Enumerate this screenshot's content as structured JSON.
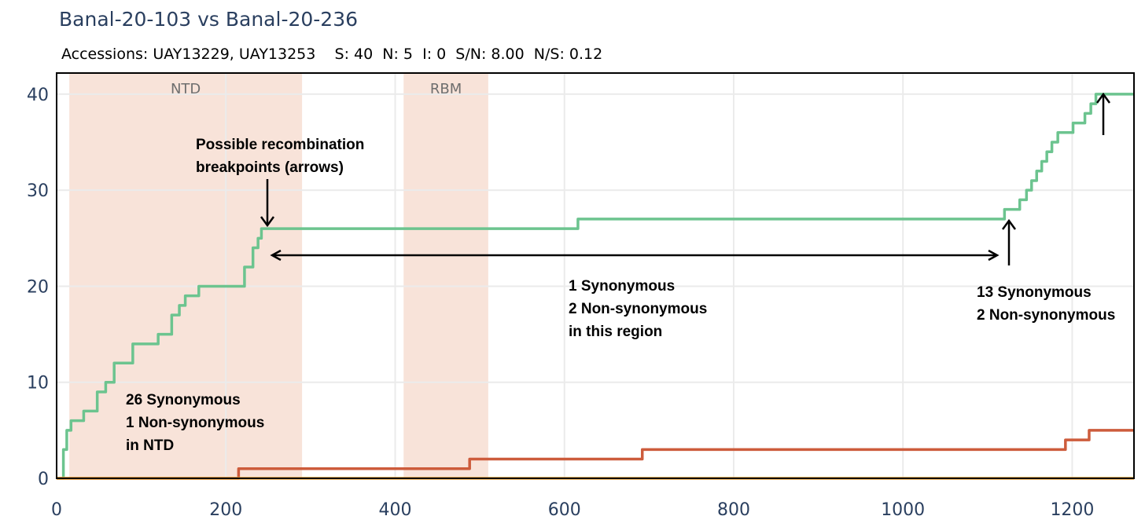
{
  "header": {
    "title": "Banal-20-103 vs Banal-20-236",
    "subtitle": "Accessions: UAY13229, UAY13253    S: 40  N: 5  I: 0  S/N: 8.00  N/S: 0.12"
  },
  "chart_data": {
    "type": "line",
    "line_shape": "step",
    "xlim": [
      0,
      1273
    ],
    "ylim": [
      0,
      42.2
    ],
    "x_ticks": [
      0,
      200,
      400,
      600,
      800,
      1000,
      1200
    ],
    "y_ticks": [
      0,
      10,
      20,
      30,
      40
    ],
    "grid": true,
    "regions": [
      {
        "label": "NTD",
        "x0": 15,
        "x1": 290,
        "color": "#f8e3d9"
      },
      {
        "label": "RBM",
        "x0": 410,
        "x1": 510,
        "color": "#f8e3d9"
      }
    ],
    "series": [
      {
        "color": "#6cc48f",
        "x": [
          0,
          8,
          12,
          17,
          32,
          48,
          58,
          68,
          78,
          90,
          102,
          120,
          136,
          145,
          152,
          158,
          168,
          180,
          200,
          210,
          222,
          232,
          238,
          242,
          246,
          255,
          300,
          400,
          500,
          616,
          700,
          800,
          900,
          1000,
          1120,
          1128,
          1138,
          1146,
          1152,
          1158,
          1164,
          1170,
          1176,
          1183,
          1192,
          1201,
          1208,
          1215,
          1222,
          1228,
          1238,
          1260,
          1273
        ],
        "y": [
          0,
          3,
          5,
          6,
          7,
          9,
          10,
          12,
          12,
          14,
          14,
          15,
          17,
          18,
          19,
          19,
          20,
          20,
          20,
          20,
          22,
          24,
          25,
          26,
          26,
          26,
          26,
          26,
          26,
          27,
          27,
          27,
          27,
          27,
          28,
          28,
          29,
          30,
          31,
          32,
          33,
          34,
          35,
          36,
          36,
          37,
          37,
          38,
          39,
          40,
          40,
          40,
          40
        ]
      },
      {
        "color": "#cd5c3c",
        "x": [
          0,
          215,
          300,
          400,
          488,
          600,
          692,
          800,
          900,
          1000,
          1100,
          1192,
          1220,
          1273
        ],
        "y": [
          0,
          1,
          1,
          1,
          2,
          2,
          3,
          3,
          3,
          3,
          3,
          4,
          5,
          5
        ]
      },
      {
        "color": "#f0a63c",
        "x": [
          0,
          1273
        ],
        "y": [
          0,
          0
        ]
      }
    ],
    "annotations": [
      {
        "lines": [
          "Possible recombination",
          "breakpoints (arrows)"
        ]
      },
      {
        "lines": [
          "1 Synonymous",
          "2 Non-synonymous",
          "in this region"
        ]
      },
      {
        "lines": [
          "13 Synonymous",
          "2 Non-synonymous"
        ]
      },
      {
        "lines": [
          "26 Synonymous",
          "1 Non-synonymous",
          "in NTD"
        ]
      }
    ]
  }
}
